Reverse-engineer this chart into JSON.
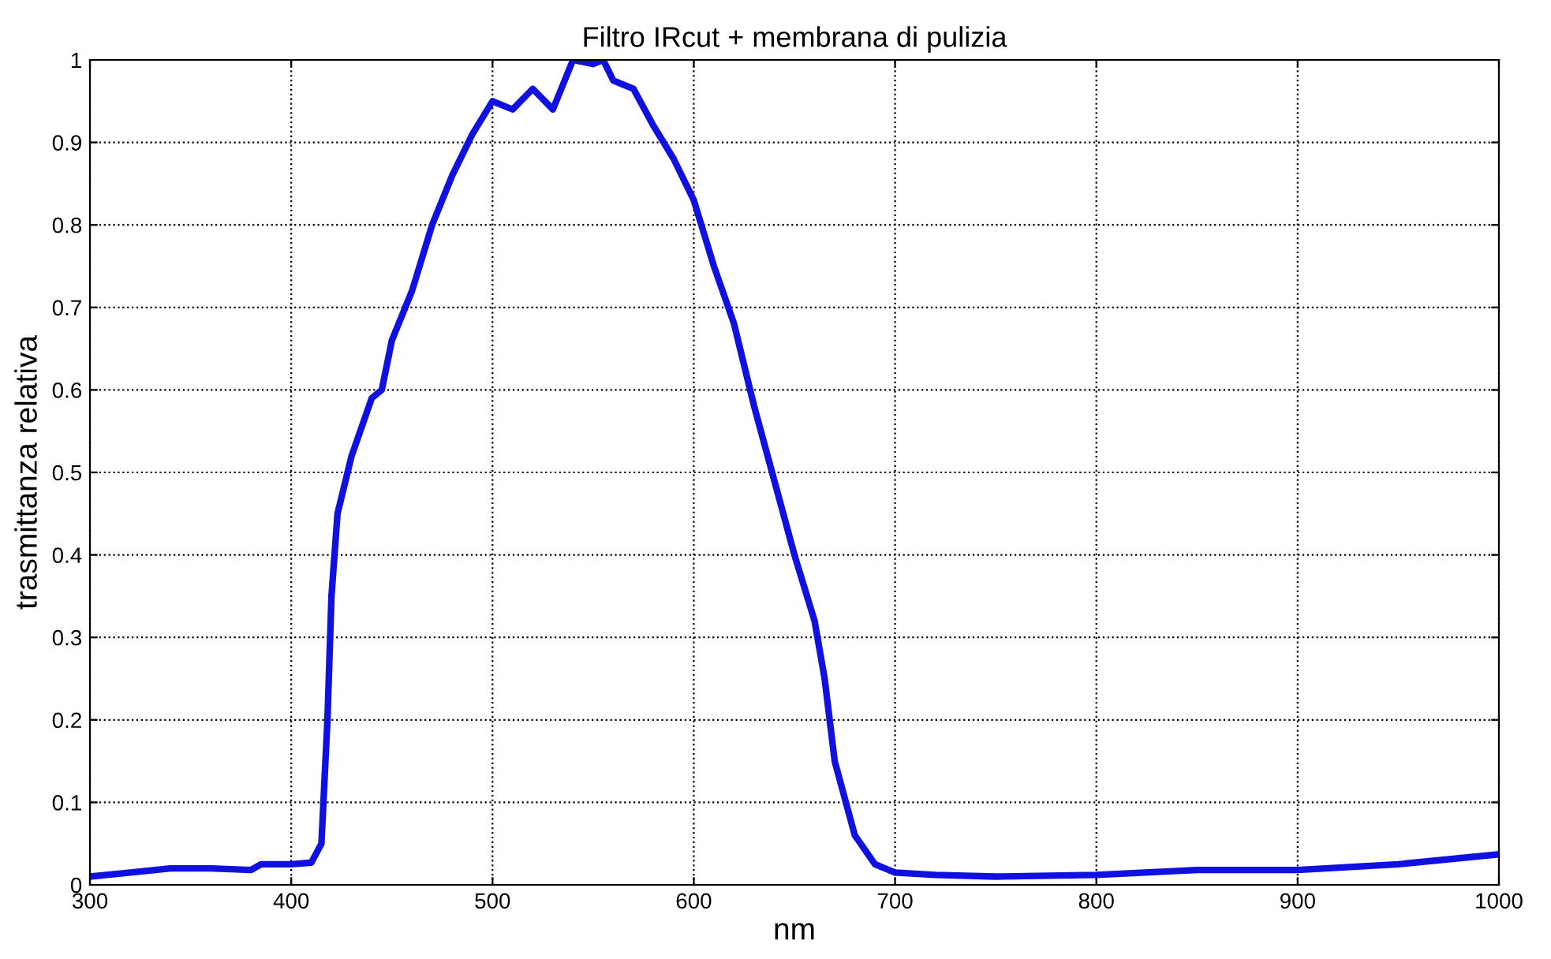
{
  "chart_data": {
    "type": "line",
    "title": "Filtro IRcut + membrana di pulizia",
    "xlabel": "nm",
    "ylabel": "trasmittanza relativa",
    "xlim": [
      300,
      1000
    ],
    "ylim": [
      0,
      1
    ],
    "xticks": [
      300,
      400,
      500,
      600,
      700,
      800,
      900,
      1000
    ],
    "yticks": [
      0,
      0.1,
      0.2,
      0.3,
      0.4,
      0.5,
      0.6,
      0.7,
      0.8,
      0.9,
      1
    ],
    "grid": true,
    "line_style": "solid",
    "marker": "none",
    "series": [
      {
        "color": "#1010e0",
        "x": [
          300,
          320,
          340,
          360,
          380,
          385,
          400,
          410,
          415,
          418,
          420,
          423,
          430,
          440,
          445,
          450,
          460,
          470,
          480,
          490,
          500,
          510,
          520,
          530,
          540,
          550,
          555,
          560,
          570,
          580,
          590,
          600,
          610,
          620,
          630,
          640,
          650,
          660,
          665,
          670,
          680,
          690,
          700,
          720,
          750,
          800,
          850,
          900,
          950,
          1000
        ],
        "values": [
          0.01,
          0.015,
          0.02,
          0.02,
          0.018,
          0.025,
          0.025,
          0.027,
          0.05,
          0.2,
          0.35,
          0.45,
          0.52,
          0.59,
          0.6,
          0.66,
          0.72,
          0.8,
          0.86,
          0.91,
          0.95,
          0.94,
          0.965,
          0.94,
          1.0,
          0.995,
          1.0,
          0.975,
          0.965,
          0.92,
          0.88,
          0.83,
          0.75,
          0.68,
          0.58,
          0.49,
          0.4,
          0.32,
          0.25,
          0.15,
          0.06,
          0.025,
          0.015,
          0.012,
          0.01,
          0.012,
          0.018,
          0.018,
          0.025,
          0.037
        ]
      }
    ]
  }
}
